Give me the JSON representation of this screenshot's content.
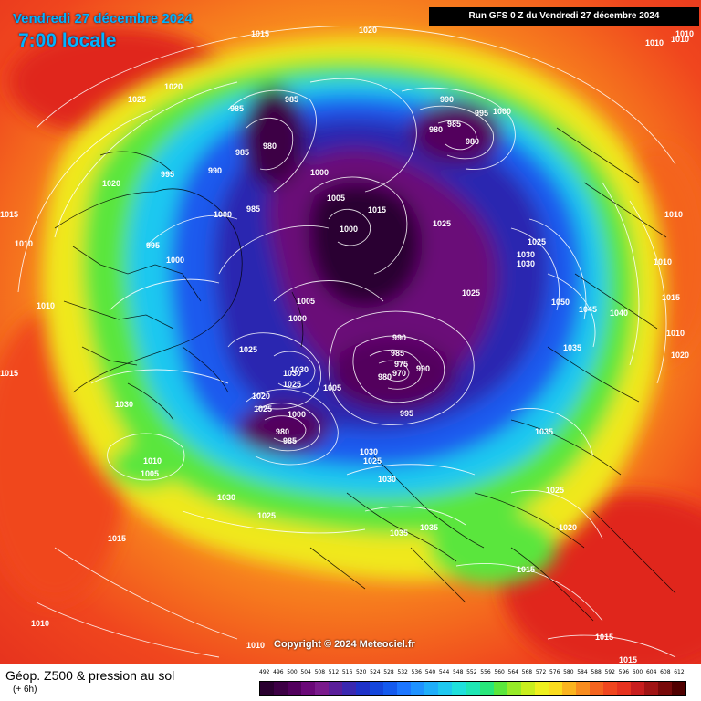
{
  "header": {
    "date": "Vendredi 27 décembre 2024",
    "time": "7:00 locale",
    "run": "Run GFS 0 Z du Vendredi 27 décembre 2024"
  },
  "copyright": "Copyright © 2024 Meteociel.fr",
  "footer": {
    "title": "Géop. Z500 & pression au sol",
    "subtitle": "(+ 6h)"
  },
  "scale": {
    "labels": [
      "492",
      "496",
      "500",
      "504",
      "508",
      "512",
      "516",
      "520",
      "524",
      "528",
      "532",
      "536",
      "540",
      "544",
      "548",
      "552",
      "556",
      "560",
      "564",
      "568",
      "572",
      "576",
      "580",
      "584",
      "588",
      "592",
      "596",
      "600",
      "604",
      "608",
      "612"
    ],
    "colors": [
      "#2a0030",
      "#3d0045",
      "#52005d",
      "#6a0878",
      "#7a1a8c",
      "#5a1e9a",
      "#3a28b0",
      "#1e32c8",
      "#1446dc",
      "#145aee",
      "#1c76ff",
      "#1e92ff",
      "#1eaefa",
      "#1ec8f0",
      "#1ee0dc",
      "#1ee6b4",
      "#28e67a",
      "#5ae63c",
      "#96ea28",
      "#c8ee1e",
      "#eef01e",
      "#fadc1e",
      "#fab41e",
      "#f88c1e",
      "#f4641e",
      "#f0461e",
      "#e6321e",
      "#c81e1e",
      "#a01414",
      "#780a0a",
      "#500000"
    ]
  },
  "isobars": [
    {
      "v": "1015",
      "c": "white"
    },
    {
      "v": "1020",
      "c": "white"
    },
    {
      "v": "1010",
      "c": "white"
    },
    {
      "v": "1010",
      "c": "white"
    },
    {
      "v": "1010",
      "c": "white"
    },
    {
      "v": "1025",
      "c": "white"
    },
    {
      "v": "1020",
      "c": "white"
    },
    {
      "v": "985",
      "c": "white"
    },
    {
      "v": "985",
      "c": "white"
    },
    {
      "v": "980",
      "c": "white"
    },
    {
      "v": "985",
      "c": "white"
    },
    {
      "v": "990",
      "c": "white"
    },
    {
      "v": "995",
      "c": "white"
    },
    {
      "v": "1000",
      "c": "white"
    },
    {
      "v": "985",
      "c": "white"
    },
    {
      "v": "1020",
      "c": "white"
    },
    {
      "v": "1015",
      "c": "white"
    },
    {
      "v": "1010",
      "c": "white"
    },
    {
      "v": "995",
      "c": "white"
    },
    {
      "v": "1000",
      "c": "white"
    },
    {
      "v": "1000",
      "c": "white"
    },
    {
      "v": "1005",
      "c": "white"
    },
    {
      "v": "1000",
      "c": "white"
    },
    {
      "v": "1015",
      "c": "white"
    },
    {
      "v": "1025",
      "c": "white"
    },
    {
      "v": "990",
      "c": "white"
    },
    {
      "v": "995",
      "c": "white"
    },
    {
      "v": "1000",
      "c": "white"
    },
    {
      "v": "985",
      "c": "white"
    },
    {
      "v": "980",
      "c": "white"
    },
    {
      "v": "980",
      "c": "white"
    },
    {
      "v": "1030",
      "c": "white"
    },
    {
      "v": "1025",
      "c": "white"
    },
    {
      "v": "1030",
      "c": "white"
    },
    {
      "v": "1025",
      "c": "white"
    },
    {
      "v": "1010",
      "c": "white"
    },
    {
      "v": "1010",
      "c": "white"
    },
    {
      "v": "1050",
      "c": "white"
    },
    {
      "v": "1045",
      "c": "white"
    },
    {
      "v": "1040",
      "c": "white"
    },
    {
      "v": "1035",
      "c": "white"
    },
    {
      "v": "1015",
      "c": "white"
    },
    {
      "v": "1010",
      "c": "white"
    },
    {
      "v": "1020",
      "c": "white"
    },
    {
      "v": "1005",
      "c": "white"
    },
    {
      "v": "1010",
      "c": "white"
    },
    {
      "v": "1000",
      "c": "white"
    },
    {
      "v": "990",
      "c": "white"
    },
    {
      "v": "985",
      "c": "white"
    },
    {
      "v": "975",
      "c": "white"
    },
    {
      "v": "970",
      "c": "white"
    },
    {
      "v": "980",
      "c": "white"
    },
    {
      "v": "990",
      "c": "white"
    },
    {
      "v": "1005",
      "c": "white"
    },
    {
      "v": "995",
      "c": "white"
    },
    {
      "v": "1030",
      "c": "white"
    },
    {
      "v": "1025",
      "c": "white"
    },
    {
      "v": "1030",
      "c": "white"
    },
    {
      "v": "1025",
      "c": "white"
    },
    {
      "v": "1020",
      "c": "white"
    },
    {
      "v": "1025",
      "c": "white"
    },
    {
      "v": "1000",
      "c": "white"
    },
    {
      "v": "980",
      "c": "white"
    },
    {
      "v": "985",
      "c": "white"
    },
    {
      "v": "1030",
      "c": "white"
    },
    {
      "v": "1015",
      "c": "white"
    },
    {
      "v": "1010",
      "c": "white"
    },
    {
      "v": "1005",
      "c": "white"
    },
    {
      "v": "1030",
      "c": "white"
    },
    {
      "v": "1025",
      "c": "white"
    },
    {
      "v": "1015",
      "c": "white"
    },
    {
      "v": "1010",
      "c": "white"
    },
    {
      "v": "1030",
      "c": "white"
    },
    {
      "v": "1025",
      "c": "white"
    },
    {
      "v": "1030",
      "c": "white"
    },
    {
      "v": "1035",
      "c": "white"
    },
    {
      "v": "1035",
      "c": "white"
    },
    {
      "v": "1035",
      "c": "white"
    },
    {
      "v": "1025",
      "c": "white"
    },
    {
      "v": "1020",
      "c": "white"
    },
    {
      "v": "1015",
      "c": "white"
    },
    {
      "v": "1015",
      "c": "white"
    },
    {
      "v": "1015",
      "c": "white"
    },
    {
      "v": "1010",
      "c": "white"
    }
  ]
}
